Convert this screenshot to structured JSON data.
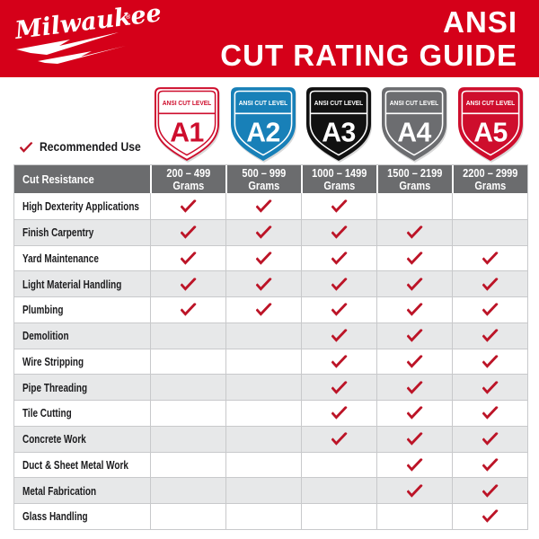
{
  "header": {
    "brand": "Milwaukee",
    "brand_mark": "®",
    "title_line1": "ANSI",
    "title_line2": "CUT RATING GUIDE"
  },
  "theme": {
    "brand_red": "#D50019",
    "check_red": "#BC1427",
    "header_gray": "#6B6C6E",
    "row_alt": "#E7E8E9",
    "grid_line": "#C8C9CB"
  },
  "legend": {
    "recommended_label": "Recommended Use"
  },
  "shields": [
    {
      "band_label": "ANSI CUT LEVEL",
      "level": "A1",
      "bg": "#FFFFFF",
      "fg": "#CE0E2D",
      "outline": "#CE0E2D"
    },
    {
      "band_label": "ANSI CUT LEVEL",
      "level": "A2",
      "bg": "#1880B8",
      "fg": "#FFFFFF",
      "outline": "#1880B8"
    },
    {
      "band_label": "ANSI CUT LEVEL",
      "level": "A3",
      "bg": "#111111",
      "fg": "#FFFFFF",
      "outline": "#111111"
    },
    {
      "band_label": "ANSI CUT LEVEL",
      "level": "A4",
      "bg": "#6C6D70",
      "fg": "#FFFFFF",
      "outline": "#6C6D70"
    },
    {
      "band_label": "ANSI CUT LEVEL",
      "level": "A5",
      "bg": "#CE0E2D",
      "fg": "#FFFFFF",
      "outline": "#CE0E2D"
    }
  ],
  "table": {
    "corner_header": "Cut Resistance",
    "columns": [
      {
        "range": "200 – 499",
        "unit": "Grams"
      },
      {
        "range": "500 – 999",
        "unit": "Grams"
      },
      {
        "range": "1000 – 1499",
        "unit": "Grams"
      },
      {
        "range": "1500 – 2199",
        "unit": "Grams"
      },
      {
        "range": "2200 – 2999",
        "unit": "Grams"
      }
    ],
    "rows": [
      {
        "label": "High Dexterity Applications",
        "checks": [
          true,
          true,
          true,
          false,
          false
        ]
      },
      {
        "label": "Finish Carpentry",
        "checks": [
          true,
          true,
          true,
          true,
          false
        ]
      },
      {
        "label": "Yard Maintenance",
        "checks": [
          true,
          true,
          true,
          true,
          true
        ]
      },
      {
        "label": "Light Material Handling",
        "checks": [
          true,
          true,
          true,
          true,
          true
        ]
      },
      {
        "label": "Plumbing",
        "checks": [
          true,
          true,
          true,
          true,
          true
        ]
      },
      {
        "label": "Demolition",
        "checks": [
          false,
          false,
          true,
          true,
          true
        ]
      },
      {
        "label": "Wire Stripping",
        "checks": [
          false,
          false,
          true,
          true,
          true
        ]
      },
      {
        "label": "Pipe Threading",
        "checks": [
          false,
          false,
          true,
          true,
          true
        ]
      },
      {
        "label": "Tile Cutting",
        "checks": [
          false,
          false,
          true,
          true,
          true
        ]
      },
      {
        "label": "Concrete Work",
        "checks": [
          false,
          false,
          true,
          true,
          true
        ]
      },
      {
        "label": "Duct & Sheet Metal Work",
        "checks": [
          false,
          false,
          false,
          true,
          true
        ]
      },
      {
        "label": "Metal Fabrication",
        "checks": [
          false,
          false,
          false,
          true,
          true
        ]
      },
      {
        "label": "Glass Handling",
        "checks": [
          false,
          false,
          false,
          false,
          true
        ]
      }
    ]
  },
  "chart_data": {
    "type": "table",
    "title": "ANSI CUT RATING GUIDE",
    "cut_levels": [
      "A1",
      "A2",
      "A3",
      "A4",
      "A5"
    ],
    "cut_resistance_grams": [
      "200 – 499",
      "500 – 999",
      "1000 – 1499",
      "1500 – 2199",
      "2200 – 2999"
    ],
    "applications": [
      "High Dexterity Applications",
      "Finish Carpentry",
      "Yard Maintenance",
      "Light Material Handling",
      "Plumbing",
      "Demolition",
      "Wire Stripping",
      "Pipe Threading",
      "Tile Cutting",
      "Concrete Work",
      "Duct & Sheet Metal Work",
      "Metal Fabrication",
      "Glass Handling"
    ],
    "recommended_matrix": [
      [
        1,
        1,
        1,
        0,
        0
      ],
      [
        1,
        1,
        1,
        1,
        0
      ],
      [
        1,
        1,
        1,
        1,
        1
      ],
      [
        1,
        1,
        1,
        1,
        1
      ],
      [
        1,
        1,
        1,
        1,
        1
      ],
      [
        0,
        0,
        1,
        1,
        1
      ],
      [
        0,
        0,
        1,
        1,
        1
      ],
      [
        0,
        0,
        1,
        1,
        1
      ],
      [
        0,
        0,
        1,
        1,
        1
      ],
      [
        0,
        0,
        1,
        1,
        1
      ],
      [
        0,
        0,
        0,
        1,
        1
      ],
      [
        0,
        0,
        0,
        1,
        1
      ],
      [
        0,
        0,
        0,
        0,
        1
      ]
    ],
    "legend": "✓ = Recommended Use"
  }
}
